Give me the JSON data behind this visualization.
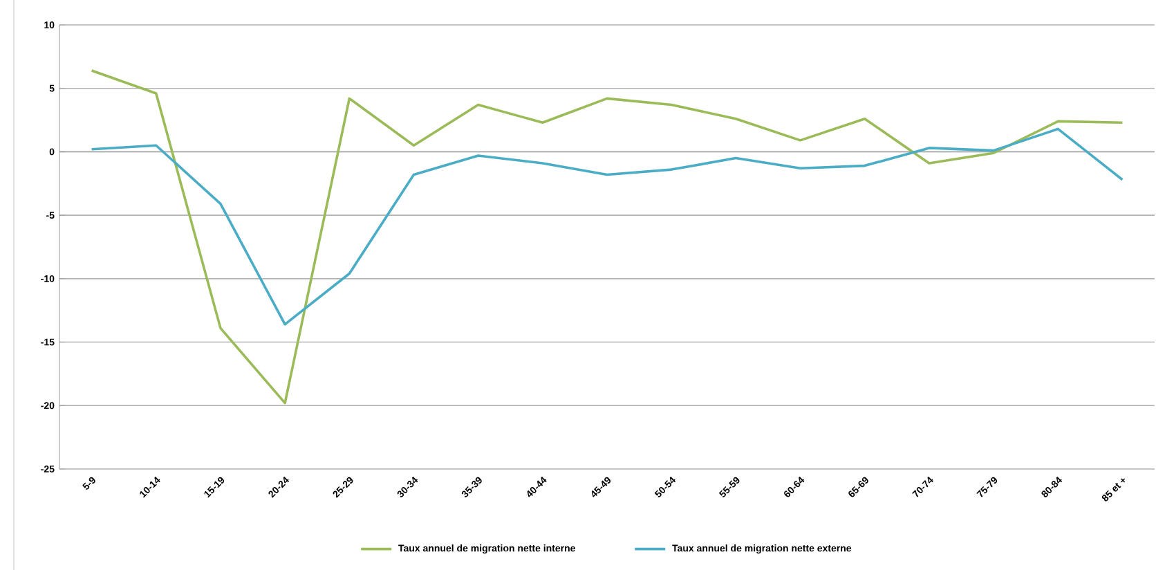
{
  "chart_data": {
    "type": "line",
    "categories": [
      "5-9",
      "10-14",
      "15-19",
      "20-24",
      "25-29",
      "30-34",
      "35-39",
      "40-44",
      "45-49",
      "50-54",
      "55-59",
      "60-64",
      "65-69",
      "70-74",
      "75-79",
      "80-84",
      "85 et +"
    ],
    "series": [
      {
        "name": "Taux annuel de migration nette interne",
        "color": "#9bbb59",
        "values": [
          6.4,
          4.6,
          -13.9,
          -19.8,
          4.2,
          0.5,
          3.7,
          2.3,
          4.2,
          3.7,
          2.6,
          0.9,
          2.6,
          -0.9,
          -0.1,
          2.4,
          2.3
        ]
      },
      {
        "name": "Taux annuel de migration nette externe",
        "color": "#4bacc6",
        "values": [
          0.2,
          0.5,
          -4.1,
          -13.6,
          -9.6,
          -1.8,
          -0.3,
          -0.9,
          -1.8,
          -1.4,
          -0.5,
          -1.3,
          -1.1,
          0.3,
          0.1,
          1.8,
          -2.2
        ]
      }
    ],
    "ylim": [
      -25,
      10
    ],
    "yticks": [
      -25,
      -20,
      -15,
      -10,
      -5,
      0,
      5,
      10
    ],
    "grid": "y",
    "legend": "bottom",
    "marker": "none",
    "line_style": "solid"
  }
}
